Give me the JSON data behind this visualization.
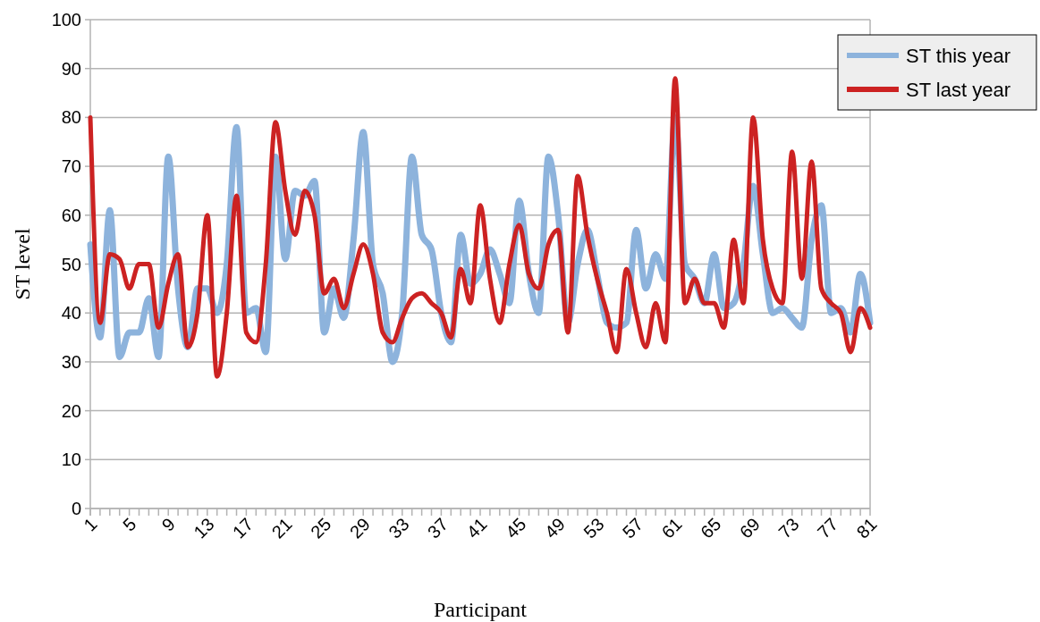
{
  "chart_data": {
    "type": "line",
    "xlabel": "Participant",
    "ylabel": "ST level",
    "categories": [
      "1",
      null,
      null,
      null,
      "5",
      null,
      null,
      null,
      "9",
      null,
      null,
      null,
      "13",
      null,
      null,
      null,
      "17",
      null,
      null,
      null,
      "21",
      null,
      null,
      null,
      "25",
      null,
      null,
      null,
      "29",
      null,
      null,
      null,
      "33",
      null,
      null,
      null,
      "37",
      null,
      null,
      null,
      "41",
      null,
      null,
      null,
      "45",
      null,
      null,
      null,
      "49",
      null,
      null,
      null,
      "53",
      null,
      null,
      null,
      "57",
      null,
      null,
      null,
      "61",
      null,
      null,
      null,
      "65",
      null,
      null,
      null,
      "69",
      null,
      null,
      null,
      "73",
      null,
      null,
      null,
      "77",
      null,
      null,
      null,
      "81"
    ],
    "series": [
      {
        "name": "ST this year",
        "color": "#8db3dc",
        "values": [
          54,
          35,
          61,
          31,
          36,
          36,
          43,
          31,
          72,
          45,
          33,
          45,
          45,
          40,
          50,
          78,
          40,
          41,
          32,
          72,
          51,
          65,
          64,
          67,
          36,
          45,
          39,
          55,
          77,
          50,
          44,
          30,
          40,
          72,
          56,
          53,
          40,
          34,
          56,
          46,
          48,
          53,
          48,
          42,
          63,
          48,
          40,
          72,
          60,
          38,
          50,
          57,
          48,
          38,
          37,
          38,
          57,
          45,
          52,
          47,
          80,
          50,
          47,
          42,
          52,
          41,
          42,
          50,
          66,
          52,
          40,
          41,
          39,
          37,
          55,
          62,
          40,
          41,
          36,
          48,
          38
        ]
      },
      {
        "name": "ST last year",
        "color": "#cc2222",
        "values": [
          80,
          38,
          52,
          51,
          45,
          50,
          50,
          37,
          46,
          52,
          33,
          40,
          60,
          27,
          40,
          64,
          36,
          34,
          50,
          79,
          65,
          56,
          65,
          60,
          44,
          47,
          41,
          48,
          54,
          48,
          36,
          34,
          39,
          43,
          44,
          42,
          40,
          35,
          49,
          42,
          62,
          47,
          38,
          50,
          58,
          48,
          45,
          54,
          57,
          36,
          68,
          56,
          47,
          40,
          32,
          49,
          40,
          33,
          42,
          34,
          88,
          42,
          47,
          42,
          42,
          37,
          55,
          42,
          80,
          55,
          45,
          42,
          73,
          47,
          71,
          45,
          42,
          40,
          32,
          41,
          37
        ]
      }
    ],
    "ylim": [
      0,
      100
    ],
    "yticks": [
      0,
      10,
      20,
      30,
      40,
      50,
      60,
      70,
      80,
      90,
      100
    ],
    "grid": "y",
    "legend": "top right",
    "marker": "none",
    "line_style": "solid"
  }
}
